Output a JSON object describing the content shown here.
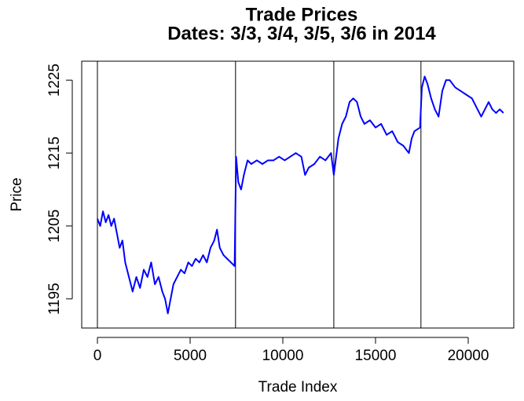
{
  "chart_data": {
    "type": "line",
    "title": "Trade Prices",
    "subtitle": "Dates: 3/3, 3/4, 3/5, 3/6 in 2014",
    "xlabel": "Trade Index",
    "ylabel": "Price",
    "xlim": [
      -847,
      22457
    ],
    "ylim": [
      1191.0,
      1227.6
    ],
    "xticks": [
      0,
      5000,
      10000,
      15000,
      20000
    ],
    "yticks": [
      1195,
      1205,
      1215,
      1225
    ],
    "vlines": [
      0,
      7450,
      12750,
      17450
    ],
    "series": [
      {
        "name": "Price",
        "color": "#0000ff",
        "x": [
          0,
          150,
          300,
          450,
          600,
          750,
          900,
          1050,
          1200,
          1350,
          1500,
          1700,
          1900,
          2100,
          2300,
          2500,
          2700,
          2900,
          3100,
          3300,
          3500,
          3650,
          3800,
          3950,
          4100,
          4300,
          4500,
          4700,
          4900,
          5100,
          5300,
          5500,
          5700,
          5900,
          6100,
          6300,
          6450,
          6600,
          6800,
          7000,
          7200,
          7400,
          7480,
          7600,
          7750,
          7900,
          8100,
          8300,
          8600,
          8900,
          9200,
          9500,
          9800,
          10100,
          10400,
          10700,
          11000,
          11200,
          11400,
          11700,
          12000,
          12300,
          12600,
          12750,
          12850,
          13000,
          13200,
          13400,
          13600,
          13800,
          14000,
          14200,
          14400,
          14700,
          15000,
          15300,
          15600,
          15900,
          16200,
          16500,
          16800,
          16950,
          17100,
          17400,
          17500,
          17650,
          17800,
          18000,
          18200,
          18400,
          18600,
          18800,
          19000,
          19300,
          19600,
          19900,
          20200,
          20500,
          20700,
          20900,
          21100,
          21300,
          21500,
          21700,
          21900
        ],
        "values": [
          1206,
          1205,
          1207,
          1205.5,
          1206.5,
          1205,
          1206,
          1204,
          1202,
          1203,
          1200,
          1198,
          1196,
          1198,
          1196.5,
          1199,
          1198,
          1200,
          1197,
          1198,
          1196,
          1195,
          1193,
          1195,
          1197,
          1198,
          1199,
          1198.5,
          1200,
          1199.5,
          1200.5,
          1200,
          1201,
          1200,
          1202,
          1203,
          1204.5,
          1202,
          1201,
          1200.5,
          1200,
          1199.5,
          1214.5,
          1211,
          1210,
          1212,
          1214,
          1213.5,
          1214,
          1213.5,
          1214,
          1214,
          1214.5,
          1214,
          1214.5,
          1215,
          1214.5,
          1212,
          1213,
          1213.5,
          1214.5,
          1214,
          1215,
          1212,
          1214,
          1217,
          1219,
          1220,
          1222,
          1222.5,
          1222,
          1220,
          1219,
          1219.5,
          1218.5,
          1219,
          1217.5,
          1218,
          1216.5,
          1216,
          1215,
          1217,
          1218,
          1218.5,
          1224,
          1225.5,
          1224.5,
          1222.5,
          1221,
          1220,
          1223.5,
          1225,
          1225,
          1224,
          1223.5,
          1223,
          1222.5,
          1221,
          1220,
          1221,
          1222,
          1221,
          1220.5,
          1221,
          1220.5
        ]
      }
    ]
  }
}
